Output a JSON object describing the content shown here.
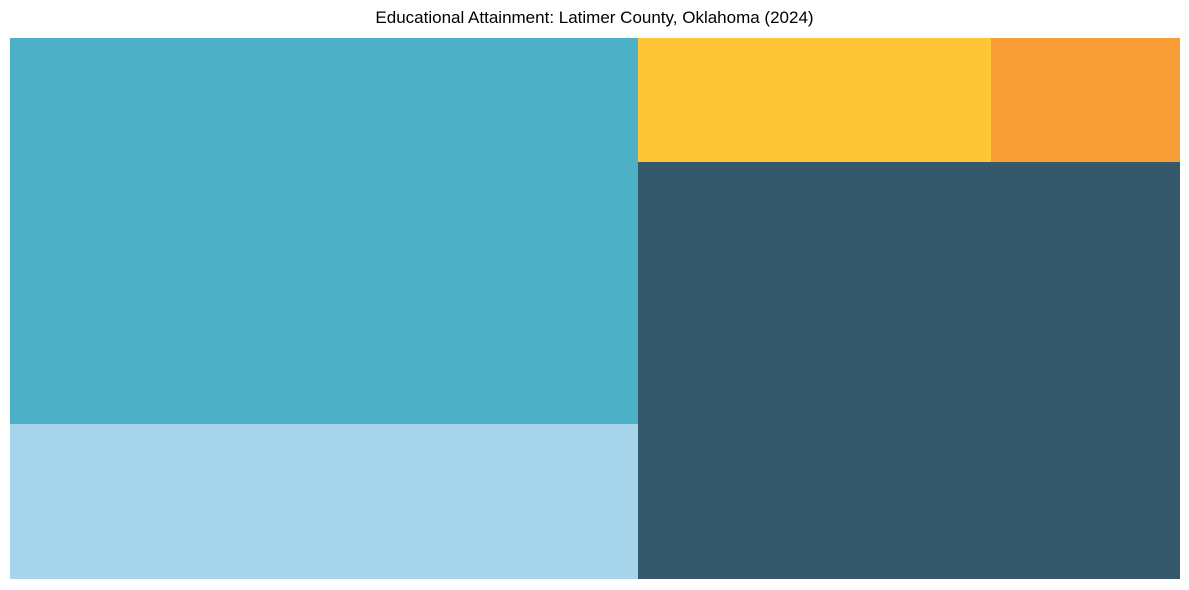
{
  "chart_data": {
    "type": "treemap",
    "title": "Educational Attainment: Latimer County, Oklahoma (2024)",
    "legend": "none",
    "tile_labels_visible": false,
    "tiles": [
      {
        "id": "teal",
        "color": "#4cb1c6",
        "area_pct": 38.3,
        "x_pct": 0,
        "y_pct": 0,
        "w_pct": 53.68,
        "h_pct": 71.35
      },
      {
        "id": "dark-slate",
        "color": "#35586b",
        "area_pct": 35.7,
        "x_pct": 53.68,
        "y_pct": 22.92,
        "w_pct": 46.32,
        "h_pct": 77.08
      },
      {
        "id": "light-blue",
        "color": "#a6d4ea",
        "area_pct": 15.4,
        "x_pct": 0,
        "y_pct": 71.35,
        "w_pct": 53.68,
        "h_pct": 28.65
      },
      {
        "id": "yellow",
        "color": "#fec637",
        "area_pct": 6.9,
        "x_pct": 53.68,
        "y_pct": 0,
        "w_pct": 30.17,
        "h_pct": 22.92
      },
      {
        "id": "orange",
        "color": "#f99d36",
        "area_pct": 3.7,
        "x_pct": 83.85,
        "y_pct": 0,
        "w_pct": 16.15,
        "h_pct": 22.92
      }
    ]
  }
}
